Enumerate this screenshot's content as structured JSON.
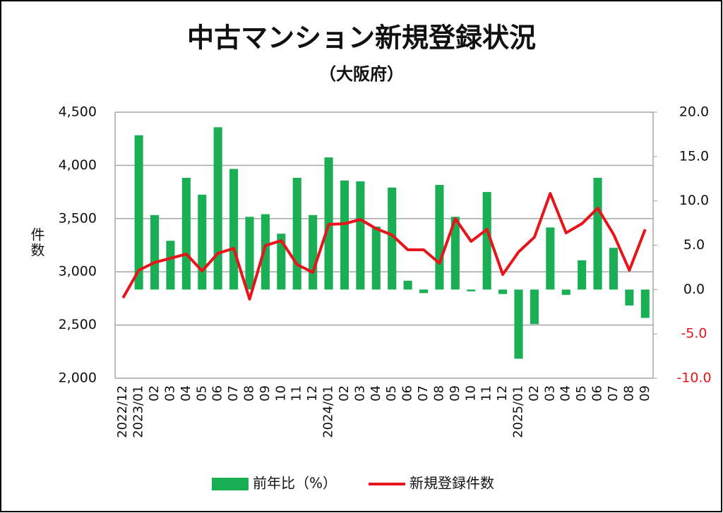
{
  "chart_data": {
    "type": "bar",
    "title": "中古マンション新規登録状況",
    "subtitle": "（大阪府）",
    "ylabel": "件数",
    "categories": [
      "2022/12",
      "2023/01",
      "02",
      "03",
      "04",
      "05",
      "06",
      "07",
      "08",
      "09",
      "10",
      "11",
      "12",
      "2024/01",
      "02",
      "03",
      "04",
      "05",
      "06",
      "07",
      "08",
      "09",
      "10",
      "11",
      "12",
      "2025/01",
      "02",
      "03",
      "04",
      "05",
      "06",
      "07",
      "08",
      "09"
    ],
    "series": [
      {
        "name": "前年比（%）",
        "type": "bar",
        "axis": "y2",
        "color": "#1aaf54",
        "values": [
          null,
          17.4,
          8.4,
          5.5,
          12.6,
          10.7,
          18.3,
          13.6,
          8.2,
          8.5,
          6.3,
          12.6,
          8.4,
          14.9,
          12.3,
          12.2,
          7.1,
          11.5,
          1.0,
          -0.4,
          11.8,
          8.2,
          -0.2,
          11.0,
          -0.5,
          -7.8,
          -3.9,
          7.0,
          -0.6,
          3.3,
          12.6,
          4.7,
          -1.8,
          -3.2
        ]
      },
      {
        "name": "新規登録件数",
        "type": "line",
        "color": "#e8141b",
        "values": [
          2755,
          3015,
          3088,
          3127,
          3167,
          3008,
          3174,
          3220,
          2743,
          3247,
          3293,
          3068,
          2995,
          3446,
          3452,
          3492,
          3406,
          3346,
          3207,
          3207,
          3081,
          3499,
          3286,
          3399,
          2975,
          3187,
          3326,
          3737,
          3366,
          3452,
          3598,
          3353,
          3015,
          3399
        ]
      }
    ],
    "ylim": [
      2000,
      4500
    ],
    "yticks": [
      {
        "value": 2000,
        "label": "2,000"
      },
      {
        "value": 2500,
        "label": "2,500"
      },
      {
        "value": 3000,
        "label": "3,000"
      },
      {
        "value": 3500,
        "label": "3,500"
      },
      {
        "value": 4000,
        "label": "4,000"
      },
      {
        "value": 4500,
        "label": "4,500"
      }
    ],
    "y2lim": [
      -10,
      20
    ],
    "y2ticks": [
      {
        "value": -10,
        "label": "-10.0"
      },
      {
        "value": -5,
        "label": "-5.0"
      },
      {
        "value": 0,
        "label": "0.0"
      },
      {
        "value": 5,
        "label": "5.0"
      },
      {
        "value": 10,
        "label": "10.0"
      },
      {
        "value": 15,
        "label": "15.0"
      },
      {
        "value": 20,
        "label": "20.0"
      }
    ],
    "negative_tick_color": "#e8141b",
    "grid": true,
    "legend": "bottom"
  }
}
